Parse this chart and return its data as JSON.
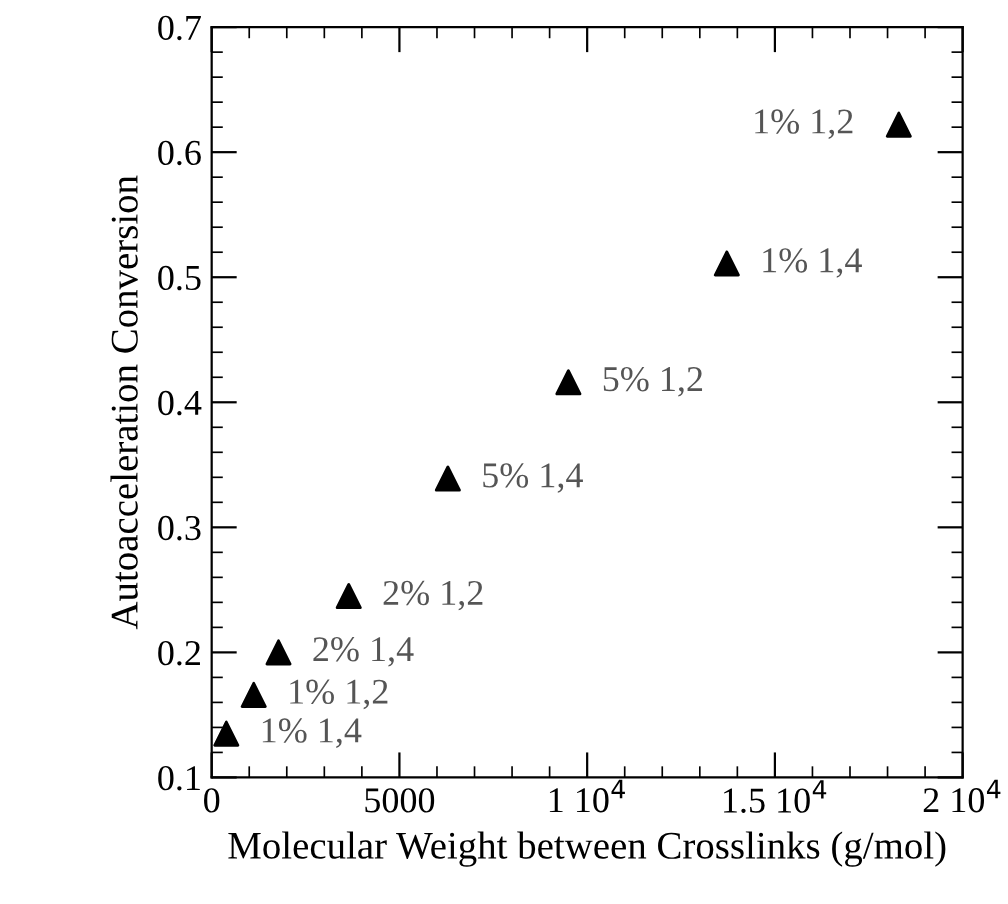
{
  "chart_data": {
    "type": "scatter",
    "xlabel": "Molecular Weight between Crosslinks (g/mol)",
    "ylabel": "Autoacceleration Conversion",
    "x": [
      390,
      1120,
      1780,
      3650,
      6290,
      9500,
      13720,
      18300
    ],
    "series": [
      {
        "color": "#000000",
        "values": [
          0.135,
          0.166,
          0.2,
          0.245,
          0.339,
          0.416,
          0.511,
          0.622
        ]
      }
    ],
    "marker": "triangle",
    "grid": false,
    "legend": false,
    "xlim": [
      0,
      20000
    ],
    "ylim": [
      0.1,
      0.7
    ],
    "xticks": [
      0,
      5000,
      {
        "value": 10000,
        "label": "1 10$^{4}$"
      },
      {
        "value": 15000,
        "label": "1.5 10$^{4}$"
      },
      {
        "value": 20000,
        "label": "2 10$^{4}$"
      }
    ],
    "yticks": [
      0.1,
      0.2,
      0.3,
      0.4,
      0.5,
      0.6,
      0.7
    ],
    "annotations": [
      {
        "text": "1% 1,4",
        "x": 390,
        "y": 0.135
      },
      {
        "text": "1% 1,2",
        "x": 1120,
        "y": 0.166
      },
      {
        "text": "2% 1,4",
        "x": 1780,
        "y": 0.2
      },
      {
        "text": "2% 1,2",
        "x": 3650,
        "y": 0.245
      },
      {
        "text": "5% 1,4",
        "x": 6290,
        "y": 0.339
      },
      {
        "text": "5% 1,2",
        "x": 9500,
        "y": 0.416
      },
      {
        "text": "1% 1,4",
        "x": 13720,
        "y": 0.511
      },
      {
        "text": "1% 1,2",
        "x": 18300,
        "y": 0.622
      }
    ]
  }
}
